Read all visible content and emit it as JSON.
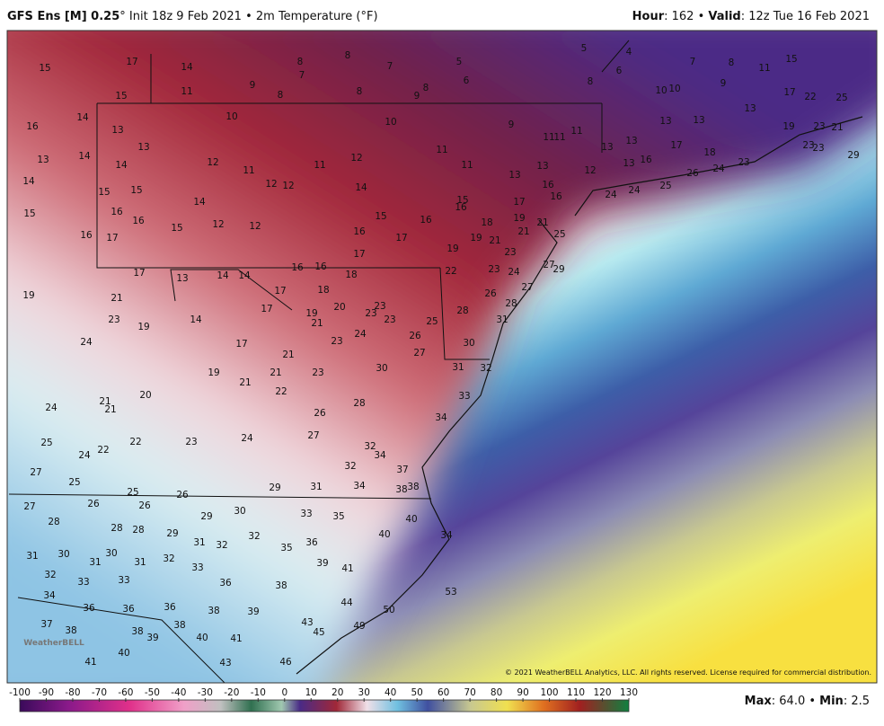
{
  "header": {
    "left": [
      "GFS Ens [M] 0.25",
      "° Init 18z 9 Feb 2021 • 2m Temperature (°F)"
    ],
    "right": [
      "Hour",
      ": 162 • ",
      "Valid",
      ": 12z Tue 16 Feb 2021"
    ]
  },
  "map": {
    "logo": "WeatherBELL",
    "copyright": "© 2021 WeatherBELL Analytics, LLC. All rights reserved. License required for commercial distribution.",
    "labels": [
      15,
      17,
      14,
      15,
      11,
      8,
      8,
      7,
      7,
      9,
      8,
      8,
      9,
      8,
      5,
      6,
      5,
      4,
      6,
      7,
      8,
      11,
      15,
      8,
      10,
      10,
      9,
      17,
      22,
      25,
      16,
      14,
      13,
      10,
      10,
      9,
      11,
      11,
      11,
      13,
      13,
      13,
      13,
      14,
      13,
      14,
      12,
      11,
      11,
      12,
      11,
      11,
      13,
      13,
      13,
      13,
      17,
      18,
      16,
      13,
      12,
      19,
      23,
      21,
      23,
      23,
      29,
      23,
      24,
      26,
      25,
      24,
      24,
      14,
      15,
      15,
      12,
      12,
      14,
      14,
      16,
      16,
      12,
      12,
      15,
      15,
      16,
      15,
      16,
      17,
      16,
      16,
      19,
      21,
      21,
      25,
      15,
      16,
      17,
      16,
      17,
      18,
      19,
      21,
      19,
      23,
      17,
      17,
      13,
      14,
      14,
      16,
      16,
      18,
      22,
      23,
      24,
      27,
      29,
      19,
      21,
      17,
      18,
      17,
      20,
      19,
      23,
      23,
      23,
      25,
      26,
      27,
      28,
      28,
      31,
      23,
      14,
      19,
      21,
      23,
      24,
      26,
      27,
      30,
      24,
      17,
      21,
      19,
      21,
      23,
      30,
      31,
      32,
      21,
      22,
      21,
      21,
      20,
      33,
      24,
      28,
      26,
      34,
      27,
      24,
      25,
      24,
      22,
      22,
      23,
      32,
      34,
      32,
      37,
      27,
      25,
      29,
      31,
      34,
      38,
      38,
      25,
      26,
      26,
      26,
      27,
      30,
      33,
      35,
      29,
      40,
      28,
      28,
      28,
      29,
      32,
      31,
      32,
      35,
      36,
      40,
      34,
      31,
      30,
      30,
      31,
      31,
      32,
      33,
      39,
      41,
      32,
      33,
      33,
      36,
      38,
      53,
      34,
      36,
      36,
      36,
      44,
      50,
      38,
      39,
      37,
      38,
      38,
      38,
      43,
      45,
      49,
      39,
      40,
      41,
      40,
      41,
      43,
      46
    ]
  },
  "colorbar": {
    "ticks": [
      -100,
      -90,
      -80,
      -70,
      -60,
      -50,
      -40,
      -30,
      -20,
      -10,
      0,
      10,
      20,
      30,
      40,
      50,
      60,
      70,
      80,
      90,
      100,
      110,
      120,
      130
    ]
  },
  "footer": [
    "Max",
    ": 64.0 • ",
    "Min",
    ": 2.5"
  ]
}
